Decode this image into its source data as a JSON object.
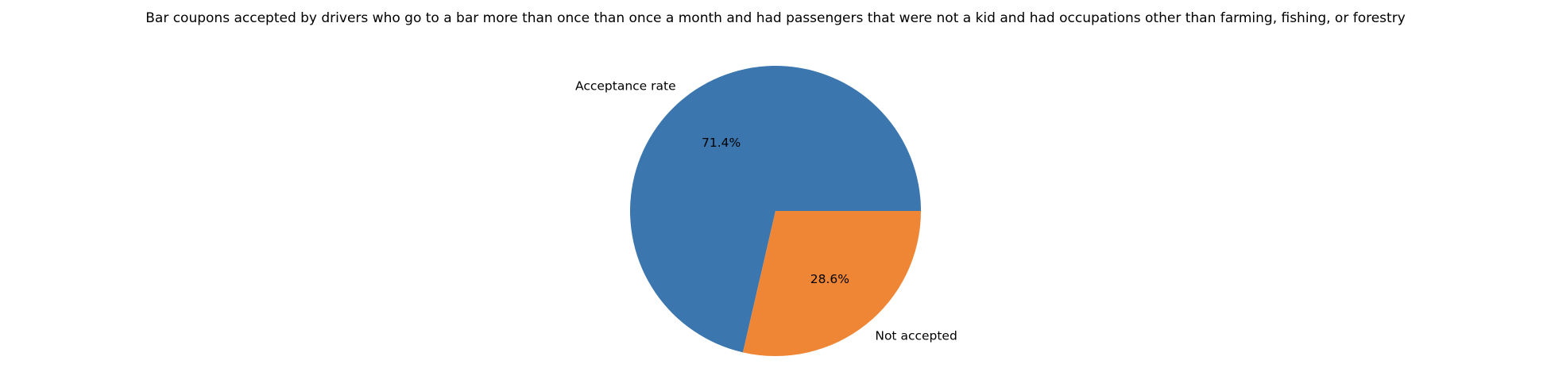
{
  "chart_data": {
    "type": "pie",
    "title": "Bar coupons accepted by drivers who go to a bar more than once than once a month and had passengers that were not a kid and had occupations other than farming, fishing, or forestry",
    "labels": [
      "Acceptance rate",
      "Not accepted"
    ],
    "values": [
      71.4,
      28.6
    ],
    "percent_labels": [
      "71.4%",
      "28.6%"
    ],
    "colors": [
      "#3b76af",
      "#ef8636"
    ],
    "start_angle_deg": 0,
    "direction": "counterclockwise"
  }
}
